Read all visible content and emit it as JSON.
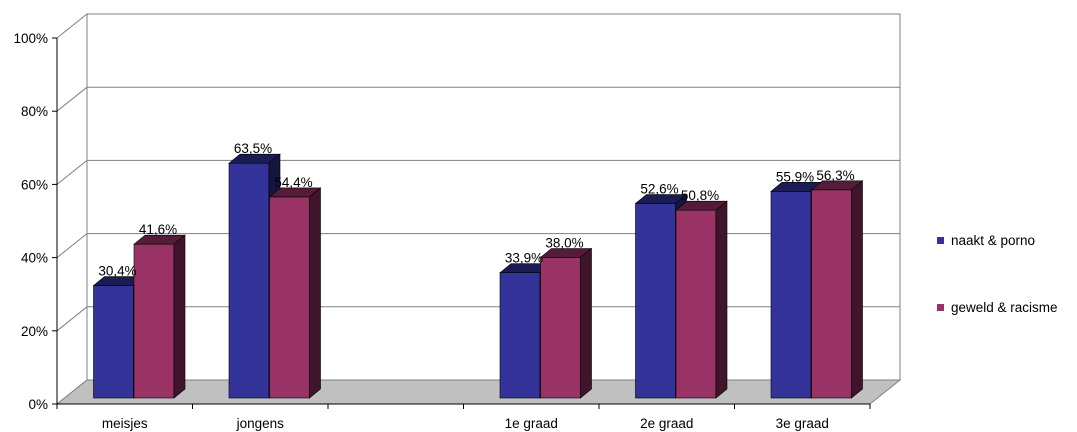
{
  "chart_data": {
    "type": "bar",
    "categories": [
      "meisjes",
      "jongens",
      "",
      "1e graad",
      "2e graad",
      "3e graad"
    ],
    "series": [
      {
        "name": "naakt & porno",
        "color": "#333399",
        "values": [
          30.4,
          63.5,
          null,
          33.9,
          52.6,
          55.9
        ],
        "labels": [
          "30,4%",
          "63,5%",
          "",
          "33,9%",
          "52,6%",
          "55,9%"
        ]
      },
      {
        "name": "geweld & racisme",
        "color": "#993366",
        "values": [
          41.6,
          54.4,
          null,
          38.0,
          50.8,
          56.3
        ],
        "labels": [
          "41,6%",
          "54,4%",
          "",
          "38,0%",
          "50,8%",
          "56,3%"
        ]
      }
    ],
    "y_ticks": [
      "0%",
      "20%",
      "40%",
      "60%",
      "80%",
      "100%"
    ],
    "ylim": [
      0,
      100
    ],
    "grid": true,
    "legend_position": "right",
    "floor_color": "#c0c0c0"
  }
}
